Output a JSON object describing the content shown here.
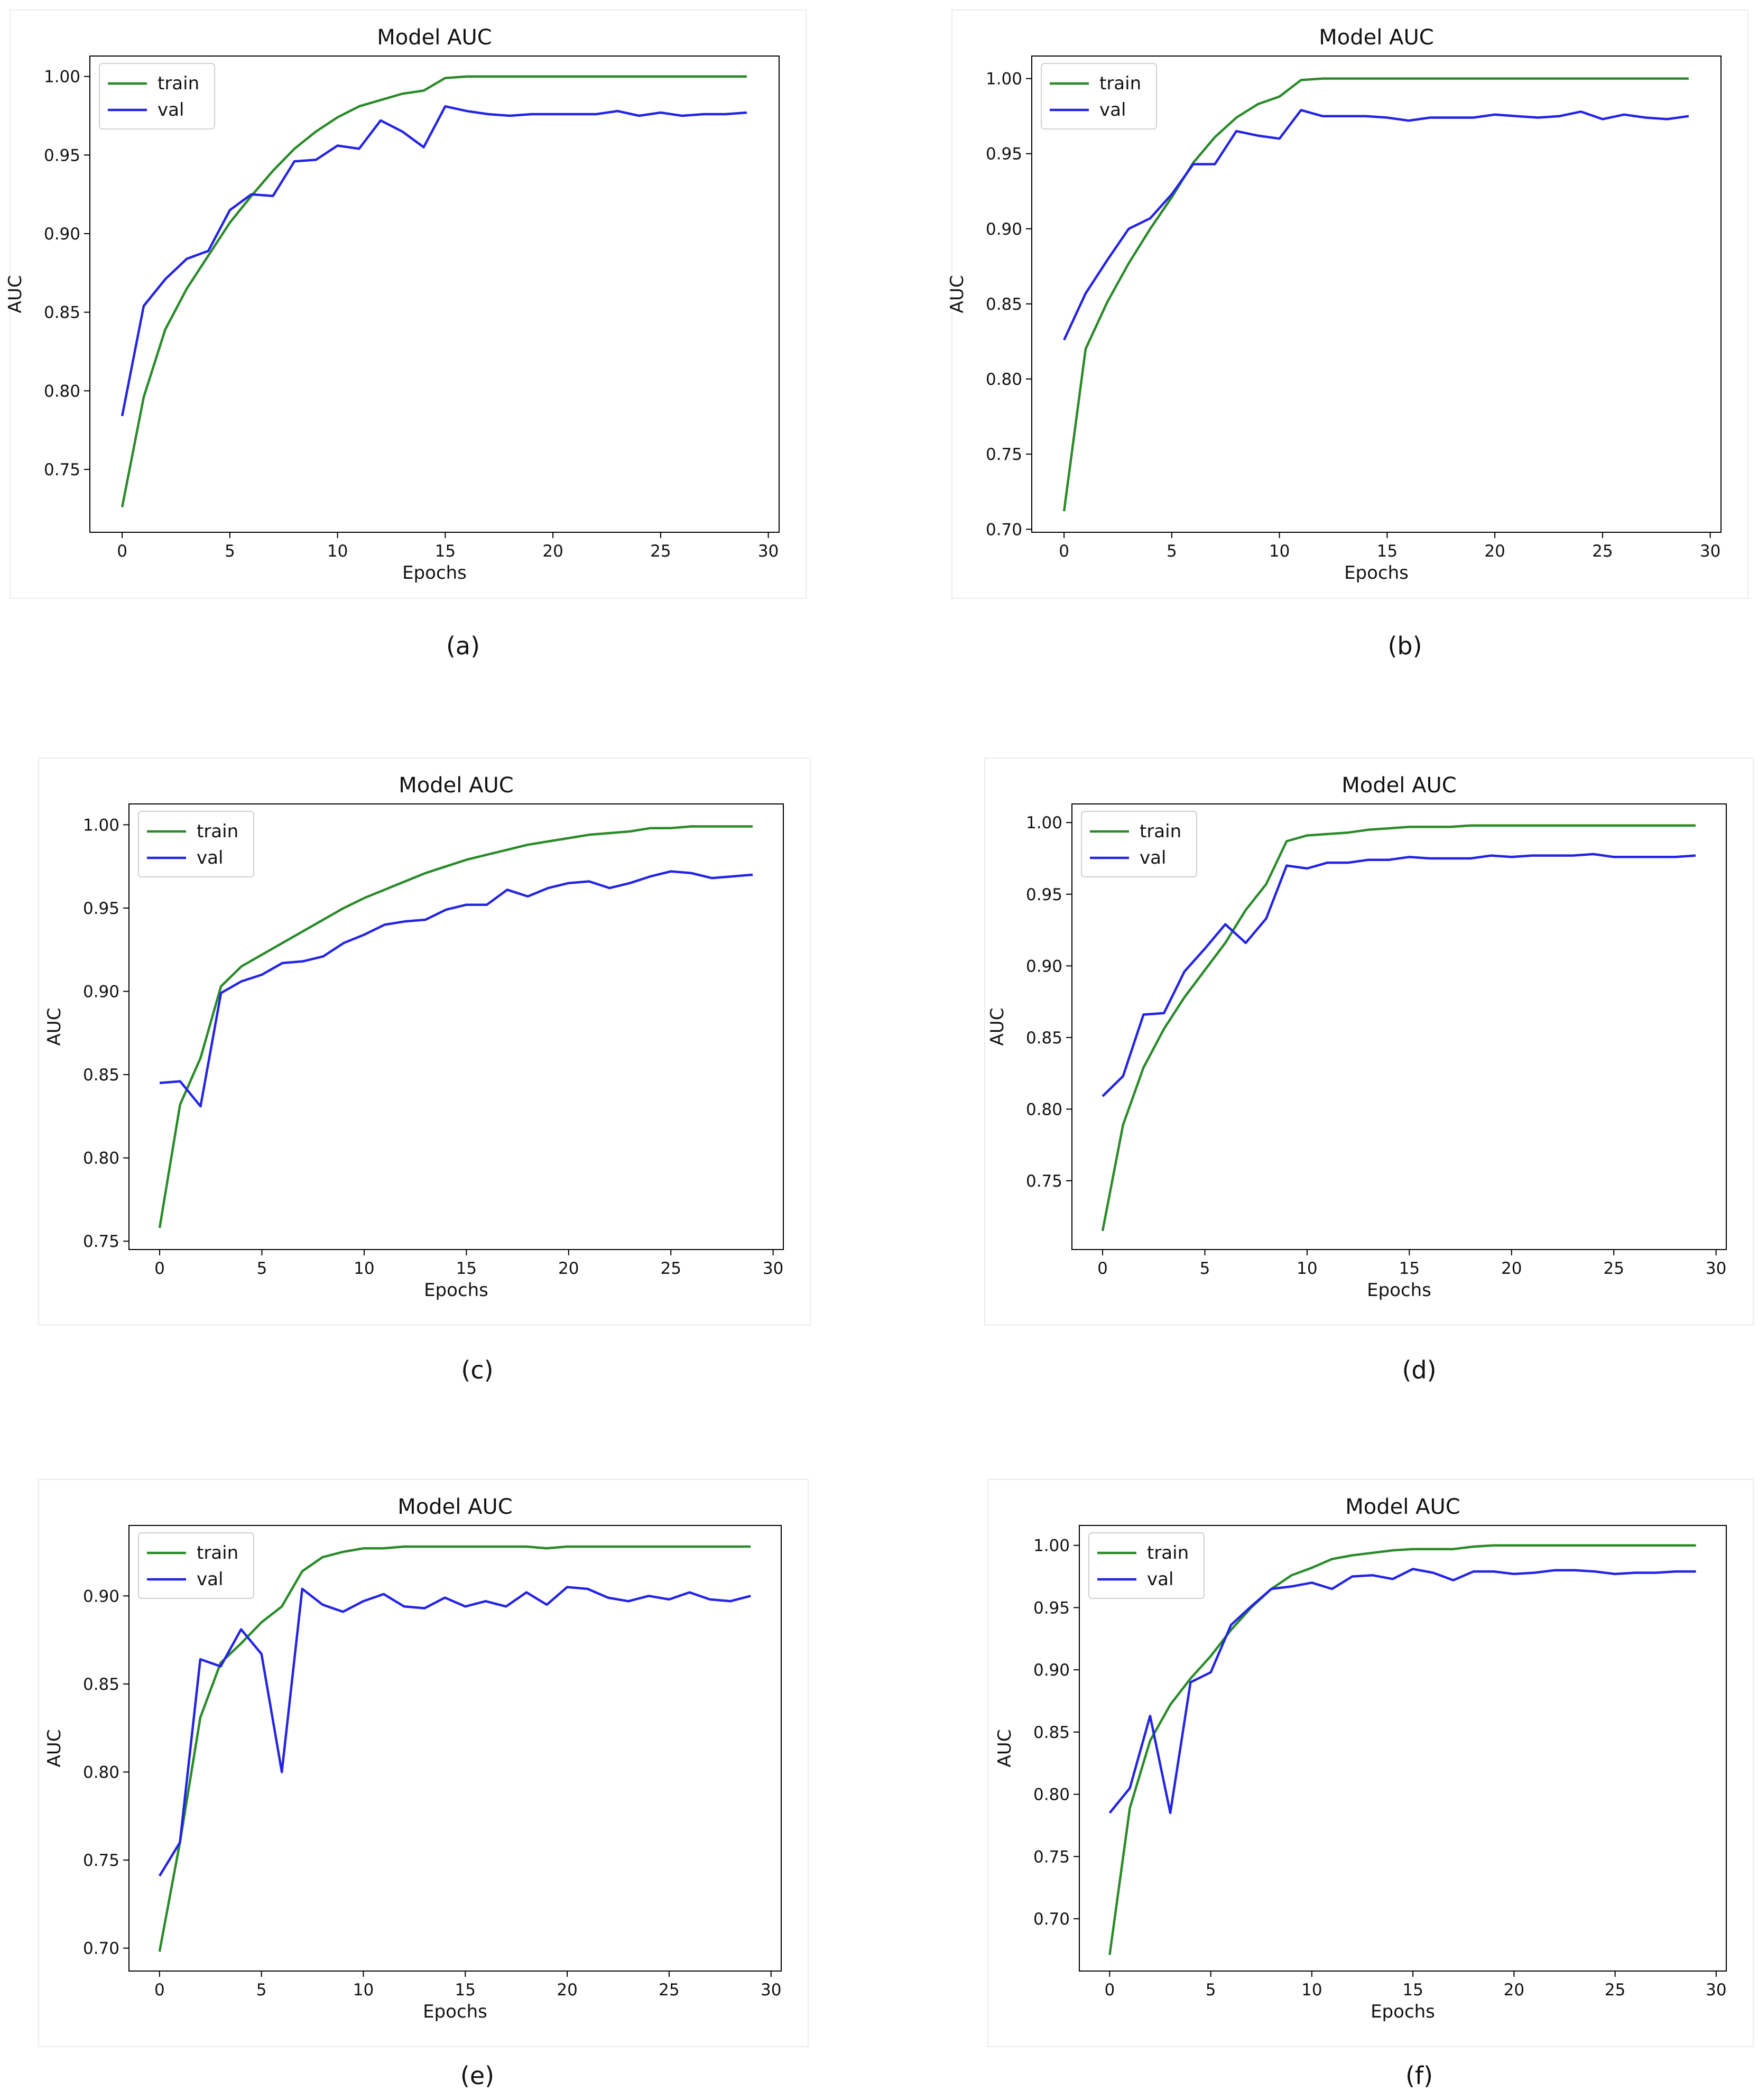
{
  "figure": {
    "captions": [
      "(a)",
      "(b)",
      "(c)",
      "(d)",
      "(e)",
      "(f)"
    ]
  },
  "colors": {
    "train": "#2a8a2a",
    "val": "#2323e6"
  },
  "chart_data": [
    {
      "type": "line",
      "title": "Model AUC",
      "xlabel": "Epochs",
      "ylabel": "AUC",
      "xlim": [
        -1.5,
        30.5
      ],
      "ylim": [
        0.71,
        1.013
      ],
      "xticks": [
        0,
        5,
        10,
        15,
        20,
        25,
        30
      ],
      "yticks": [
        0.75,
        0.8,
        0.85,
        0.9,
        0.95,
        1.0
      ],
      "legend": "top-left",
      "grid": false,
      "series": [
        {
          "name": "train",
          "color": "#2a8a2a",
          "values": [
            0.726,
            0.796,
            0.839,
            0.865,
            0.886,
            0.907,
            0.924,
            0.94,
            0.954,
            0.965,
            0.974,
            0.981,
            0.985,
            0.989,
            0.991,
            0.999,
            1.0,
            1.0,
            1.0,
            1.0,
            1.0,
            1.0,
            1.0,
            1.0,
            1.0,
            1.0,
            1.0,
            1.0,
            1.0,
            1.0
          ]
        },
        {
          "name": "val",
          "color": "#2323e6",
          "values": [
            0.784,
            0.854,
            0.871,
            0.884,
            0.889,
            0.915,
            0.925,
            0.924,
            0.946,
            0.947,
            0.956,
            0.954,
            0.972,
            0.965,
            0.955,
            0.981,
            0.978,
            0.976,
            0.975,
            0.976,
            0.976,
            0.976,
            0.976,
            0.978,
            0.975,
            0.977,
            0.975,
            0.976,
            0.976,
            0.977
          ]
        }
      ]
    },
    {
      "type": "line",
      "title": "Model AUC",
      "xlabel": "Epochs",
      "ylabel": "AUC",
      "xlim": [
        -1.5,
        30.5
      ],
      "ylim": [
        0.698,
        1.015
      ],
      "xticks": [
        0,
        5,
        10,
        15,
        20,
        25,
        30
      ],
      "yticks": [
        0.7,
        0.75,
        0.8,
        0.85,
        0.9,
        0.95,
        1.0
      ],
      "legend": "top-left",
      "grid": false,
      "series": [
        {
          "name": "train",
          "color": "#2a8a2a",
          "values": [
            0.712,
            0.82,
            0.851,
            0.877,
            0.9,
            0.921,
            0.944,
            0.961,
            0.974,
            0.983,
            0.988,
            0.999,
            1.0,
            1.0,
            1.0,
            1.0,
            1.0,
            1.0,
            1.0,
            1.0,
            1.0,
            1.0,
            1.0,
            1.0,
            1.0,
            1.0,
            1.0,
            1.0,
            1.0,
            1.0
          ]
        },
        {
          "name": "val",
          "color": "#2323e6",
          "values": [
            0.826,
            0.857,
            0.879,
            0.9,
            0.907,
            0.923,
            0.943,
            0.943,
            0.965,
            0.962,
            0.96,
            0.979,
            0.975,
            0.975,
            0.975,
            0.974,
            0.972,
            0.974,
            0.974,
            0.974,
            0.976,
            0.975,
            0.974,
            0.975,
            0.978,
            0.973,
            0.976,
            0.974,
            0.973,
            0.975
          ]
        }
      ]
    },
    {
      "type": "line",
      "title": "Model AUC",
      "xlabel": "Epochs",
      "ylabel": "AUC",
      "xlim": [
        -1.5,
        30.5
      ],
      "ylim": [
        0.745,
        1.0125
      ],
      "xticks": [
        0,
        5,
        10,
        15,
        20,
        25,
        30
      ],
      "yticks": [
        0.75,
        0.8,
        0.85,
        0.9,
        0.95,
        1.0
      ],
      "legend": "top-left",
      "grid": false,
      "series": [
        {
          "name": "train",
          "color": "#2a8a2a",
          "values": [
            0.758,
            0.832,
            0.86,
            0.903,
            0.915,
            0.922,
            0.929,
            0.936,
            0.943,
            0.95,
            0.956,
            0.961,
            0.966,
            0.971,
            0.975,
            0.979,
            0.982,
            0.985,
            0.988,
            0.99,
            0.992,
            0.994,
            0.995,
            0.996,
            0.998,
            0.998,
            0.999,
            0.999,
            0.999,
            0.999
          ]
        },
        {
          "name": "val",
          "color": "#2323e6",
          "values": [
            0.845,
            0.846,
            0.831,
            0.899,
            0.906,
            0.91,
            0.917,
            0.918,
            0.921,
            0.929,
            0.934,
            0.94,
            0.942,
            0.943,
            0.949,
            0.952,
            0.952,
            0.961,
            0.957,
            0.962,
            0.965,
            0.966,
            0.962,
            0.965,
            0.969,
            0.972,
            0.971,
            0.968,
            0.969,
            0.97
          ]
        }
      ]
    },
    {
      "type": "line",
      "title": "Model AUC",
      "xlabel": "Epochs",
      "ylabel": "AUC",
      "xlim": [
        -1.5,
        30.5
      ],
      "ylim": [
        0.702,
        1.013
      ],
      "xticks": [
        0,
        5,
        10,
        15,
        20,
        25,
        30
      ],
      "yticks": [
        0.75,
        0.8,
        0.85,
        0.9,
        0.95,
        1.0
      ],
      "legend": "top-left",
      "grid": false,
      "series": [
        {
          "name": "train",
          "color": "#2a8a2a",
          "values": [
            0.715,
            0.789,
            0.829,
            0.856,
            0.878,
            0.897,
            0.916,
            0.939,
            0.957,
            0.987,
            0.991,
            0.992,
            0.993,
            0.995,
            0.996,
            0.997,
            0.997,
            0.997,
            0.998,
            0.998,
            0.998,
            0.998,
            0.998,
            0.998,
            0.998,
            0.998,
            0.998,
            0.998,
            0.998,
            0.998
          ]
        },
        {
          "name": "val",
          "color": "#2323e6",
          "values": [
            0.809,
            0.823,
            0.866,
            0.867,
            0.896,
            0.912,
            0.929,
            0.916,
            0.933,
            0.97,
            0.968,
            0.972,
            0.972,
            0.974,
            0.974,
            0.976,
            0.975,
            0.975,
            0.975,
            0.977,
            0.976,
            0.977,
            0.977,
            0.977,
            0.978,
            0.976,
            0.976,
            0.976,
            0.976,
            0.977
          ]
        }
      ]
    },
    {
      "type": "line",
      "title": "Model AUC",
      "xlabel": "Epochs",
      "ylabel": "AUC",
      "xlim": [
        -1.5,
        30.5
      ],
      "ylim": [
        0.687,
        0.94
      ],
      "xticks": [
        0,
        5,
        10,
        15,
        20,
        25,
        30
      ],
      "yticks": [
        0.7,
        0.75,
        0.8,
        0.85,
        0.9
      ],
      "legend": "top-left",
      "grid": false,
      "series": [
        {
          "name": "train",
          "color": "#2a8a2a",
          "values": [
            0.698,
            0.76,
            0.831,
            0.862,
            0.873,
            0.885,
            0.894,
            0.914,
            0.922,
            0.925,
            0.927,
            0.927,
            0.928,
            0.928,
            0.928,
            0.928,
            0.928,
            0.928,
            0.928,
            0.927,
            0.928,
            0.928,
            0.928,
            0.928,
            0.928,
            0.928,
            0.928,
            0.928,
            0.928,
            0.928
          ]
        },
        {
          "name": "val",
          "color": "#2323e6",
          "values": [
            0.741,
            0.76,
            0.864,
            0.86,
            0.881,
            0.867,
            0.8,
            0.904,
            0.895,
            0.891,
            0.897,
            0.901,
            0.894,
            0.893,
            0.899,
            0.894,
            0.897,
            0.894,
            0.902,
            0.895,
            0.905,
            0.904,
            0.899,
            0.897,
            0.9,
            0.898,
            0.902,
            0.898,
            0.897,
            0.9
          ]
        }
      ]
    },
    {
      "type": "line",
      "title": "Model AUC",
      "xlabel": "Epochs",
      "ylabel": "AUC",
      "xlim": [
        -1.5,
        30.5
      ],
      "ylim": [
        0.658,
        1.016
      ],
      "xticks": [
        0,
        5,
        10,
        15,
        20,
        25,
        30
      ],
      "yticks": [
        0.7,
        0.75,
        0.8,
        0.85,
        0.9,
        0.95,
        1.0
      ],
      "legend": "top-left",
      "grid": false,
      "series": [
        {
          "name": "train",
          "color": "#2a8a2a",
          "values": [
            0.671,
            0.789,
            0.843,
            0.872,
            0.893,
            0.911,
            0.932,
            0.95,
            0.965,
            0.976,
            0.982,
            0.989,
            0.992,
            0.994,
            0.996,
            0.997,
            0.997,
            0.997,
            0.999,
            1.0,
            1.0,
            1.0,
            1.0,
            1.0,
            1.0,
            1.0,
            1.0,
            1.0,
            1.0,
            1.0
          ]
        },
        {
          "name": "val",
          "color": "#2323e6",
          "values": [
            0.785,
            0.805,
            0.863,
            0.785,
            0.89,
            0.898,
            0.936,
            0.951,
            0.965,
            0.967,
            0.97,
            0.965,
            0.975,
            0.976,
            0.973,
            0.981,
            0.978,
            0.972,
            0.979,
            0.979,
            0.977,
            0.978,
            0.98,
            0.98,
            0.979,
            0.977,
            0.978,
            0.978,
            0.979,
            0.979
          ]
        }
      ]
    }
  ]
}
